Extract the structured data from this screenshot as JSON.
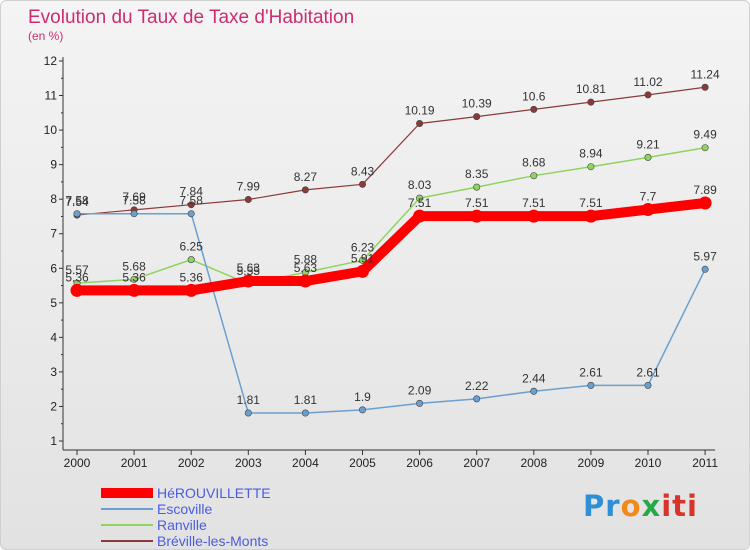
{
  "chart_data": {
    "type": "line",
    "title": "Evolution du Taux de Taxe d'Habitation",
    "subtitle": "(en %)",
    "x": [
      "2000",
      "2001",
      "2002",
      "2003",
      "2004",
      "2005",
      "2006",
      "2007",
      "2008",
      "2009",
      "2010",
      "2011"
    ],
    "ylim": [
      1,
      12
    ],
    "yticks": [
      "1",
      "2",
      "3",
      "4",
      "5",
      "6",
      "7",
      "8",
      "9",
      "10",
      "11",
      "12"
    ],
    "grid": false,
    "legend_position": "bottom-left",
    "series": [
      {
        "name": "HéROUVILLETTE",
        "color": "#ff0000",
        "values": [
          5.36,
          5.36,
          5.36,
          5.63,
          5.63,
          5.91,
          7.51,
          7.51,
          7.51,
          7.51,
          7.7,
          7.89
        ],
        "labels": [
          "5.36",
          "5.36",
          "5.36",
          "5.63",
          "5.63",
          "5.91",
          "7.51",
          "7.51",
          "7.51",
          "7.51",
          "7.7",
          "7.89"
        ]
      },
      {
        "name": "Escoville",
        "color": "#6aa0d0",
        "values": [
          7.58,
          7.58,
          7.58,
          1.81,
          1.81,
          1.9,
          2.09,
          2.22,
          2.44,
          2.61,
          2.61,
          5.97
        ],
        "labels": [
          "7.58",
          "7.58",
          "7.58",
          "1.81",
          "1.81",
          "1.9",
          "2.09",
          "2.22",
          "2.44",
          "2.61",
          "2.61",
          "5.97"
        ]
      },
      {
        "name": "Ranville",
        "color": "#8ed45e",
        "values": [
          5.57,
          5.68,
          6.25,
          5.55,
          5.88,
          6.23,
          8.03,
          8.35,
          8.68,
          8.94,
          9.21,
          9.49
        ],
        "labels": [
          "5.57",
          "5.68",
          "6.25",
          "5.55",
          "5.88",
          "6.23",
          "8.03",
          "8.35",
          "8.68",
          "8.94",
          "9.21",
          "9.49"
        ]
      },
      {
        "name": "Bréville-les-Monts",
        "color": "#8b3a3a",
        "values": [
          7.54,
          7.69,
          7.84,
          7.99,
          8.27,
          8.43,
          10.19,
          10.39,
          10.6,
          10.81,
          11.02,
          11.24
        ],
        "labels": [
          "7.54",
          "7.69",
          "7.84",
          "7.99",
          "8.27",
          "8.43",
          "10.19",
          "10.39",
          "10.6",
          "10.81",
          "11.02",
          "11.24"
        ]
      }
    ]
  },
  "brand": {
    "letters": [
      "Pr",
      "o",
      "x",
      "iti"
    ],
    "colors": [
      "#2e8fd6",
      "#f08a1c",
      "#27a84a",
      "#d8352a"
    ]
  }
}
